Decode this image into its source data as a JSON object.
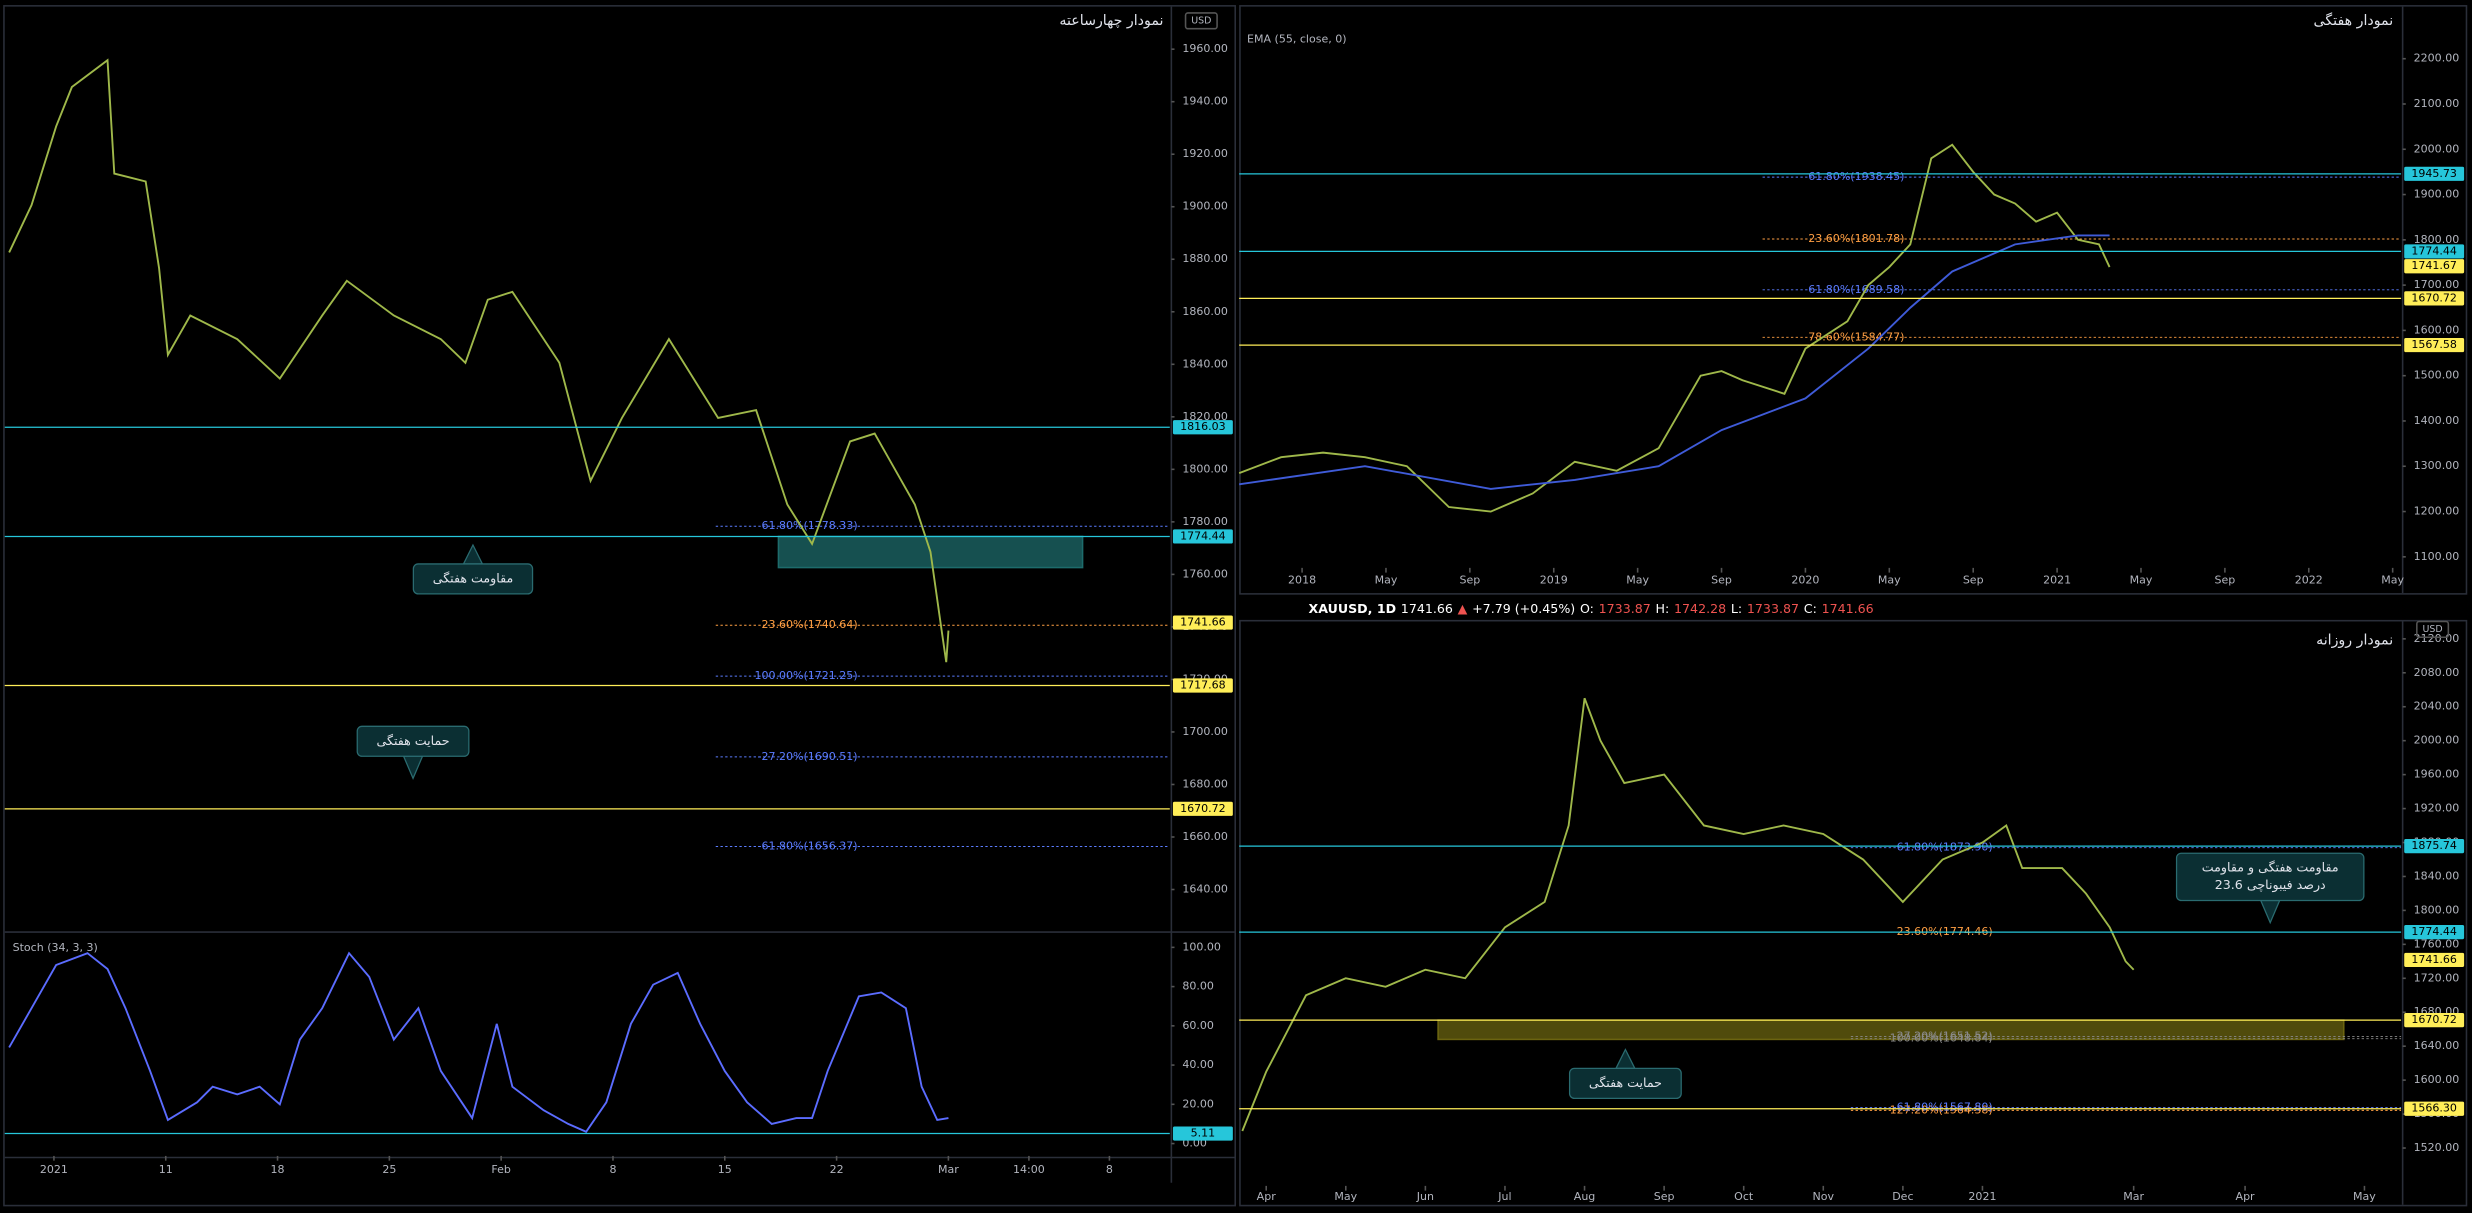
{
  "chart_data": [
    {
      "type": "line",
      "title": "نمودار چهارساعته",
      "currency": "USD",
      "xlim": [
        -2.2,
        49.9
      ],
      "ylim": [
        1624.4,
        1975.6
      ],
      "yticks": [
        {
          "value": 1640,
          "label": "1640.00"
        },
        {
          "value": 1660,
          "label": "1660.00"
        },
        {
          "value": 1680,
          "label": "1680.00"
        },
        {
          "value": 1700,
          "label": "1700.00"
        },
        {
          "value": 1720,
          "label": "1720.00"
        },
        {
          "value": 1740,
          "label": "1740.00"
        },
        {
          "value": 1760,
          "label": "1760.00"
        },
        {
          "value": 1780,
          "label": "1780.00"
        },
        {
          "value": 1800,
          "label": "1800.00"
        },
        {
          "value": 1820,
          "label": "1820.00"
        },
        {
          "value": 1840,
          "label": "1840.00"
        },
        {
          "value": 1860,
          "label": "1860.00"
        },
        {
          "value": 1880,
          "label": "1880.00"
        },
        {
          "value": 1900,
          "label": "1900.00"
        },
        {
          "value": 1920,
          "label": "1920.00"
        },
        {
          "value": 1940,
          "label": "1940.00"
        },
        {
          "value": 1960,
          "label": "1960.00"
        }
      ],
      "grid": false,
      "series": [
        {
          "color": "#9fb84a",
          "x": [
            -2.0,
            -1.0,
            0.1,
            0.8,
            2.4,
            2.7,
            4.1,
            4.7,
            5.1,
            6.1,
            8.2,
            10.1,
            12.0,
            13.1,
            15.2,
            17.3,
            18.4,
            19.4,
            20.5,
            22.6,
            24.0,
            25.4,
            27.5,
            29.7,
            31.4,
            32.8,
            33.9,
            35.6,
            36.7,
            38.5,
            39.2,
            39.7,
            39.9,
            40.0
          ],
          "values": [
            1882.6,
            1900.6,
            1930.6,
            1945.6,
            1955.8,
            1912.6,
            1909.6,
            1876.6,
            1843.6,
            1858.6,
            1849.6,
            1834.6,
            1858.6,
            1871.8,
            1858.6,
            1849.6,
            1840.6,
            1864.6,
            1867.6,
            1840.6,
            1795.6,
            1819.6,
            1849.6,
            1819.6,
            1822.6,
            1786.6,
            1771.6,
            1810.6,
            1813.6,
            1786.6,
            1768.6,
            1738.6,
            1726.6,
            1738.6
          ]
        }
      ],
      "zones": [
        {
          "xfrom": 32.4,
          "xto": 46.0,
          "from": 1774.44,
          "to": 1762.6,
          "color": "#1d6b6b"
        }
      ],
      "levels": [
        {
          "value": 1816.03,
          "color": "#26c6da"
        },
        {
          "value": 1774.44,
          "color": "#26c6da"
        },
        {
          "value": 1741.66,
          "color": "#ffee58",
          "line": false
        },
        {
          "value": 1717.68,
          "color": "#ffee58"
        },
        {
          "value": 1670.72,
          "color": "#ffee58"
        }
      ],
      "fibs": [
        {
          "label": "61.80%(1778.33)",
          "value": 1778.33,
          "color": "#5b7cff"
        },
        {
          "label": "23.60%(1740.64)",
          "value": 1740.64,
          "color": "#ff9f43"
        },
        {
          "label": "100.00%(1721.25)",
          "value": 1721.25,
          "color": "#5b7cff"
        },
        {
          "label": "-27.20%(1690.51)",
          "value": 1690.51,
          "color": "#5b7cff"
        },
        {
          "label": "-61.80%(1656.37)",
          "value": 1656.37,
          "color": "#5b7cff"
        }
      ],
      "annotations": [
        [
          "مقاومت هفتگی"
        ],
        [
          "حمایت هفتگی"
        ]
      ]
    },
    {
      "type": "line",
      "title": "Stoch (34, 3, 3)",
      "xlim": [
        -2.2,
        49.9
      ],
      "ylim": [
        -6.3,
        107
      ],
      "xticks": [
        {
          "value": 0,
          "label": "2021"
        },
        {
          "value": 5,
          "label": "11"
        },
        {
          "value": 10,
          "label": "18"
        },
        {
          "value": 15,
          "label": "25"
        },
        {
          "value": 20,
          "label": "Feb"
        },
        {
          "value": 25,
          "label": "8"
        },
        {
          "value": 30,
          "label": "15"
        },
        {
          "value": 35,
          "label": "22"
        },
        {
          "value": 40,
          "label": "Mar"
        },
        {
          "value": 43.6,
          "label": "14:00"
        },
        {
          "value": 47.2,
          "label": "8"
        }
      ],
      "yticks": [
        {
          "value": 0,
          "label": "0.00"
        },
        {
          "value": 20,
          "label": "20.00"
        },
        {
          "value": 40,
          "label": "40.00"
        },
        {
          "value": 60,
          "label": "60.00"
        },
        {
          "value": 80,
          "label": "80.00"
        },
        {
          "value": 100,
          "label": "100.00"
        }
      ],
      "grid": false,
      "series": [
        {
          "color": "#5b6cff",
          "x": [
            -2.0,
            -1.0,
            0.1,
            1.5,
            2.4,
            3.2,
            4.3,
            5.1,
            6.4,
            7.1,
            8.2,
            9.2,
            10.1,
            11.0,
            12.0,
            13.2,
            14.1,
            15.2,
            16.3,
            17.3,
            18.7,
            19.8,
            20.5,
            21.9,
            23.0,
            23.8,
            24.7,
            25.8,
            26.8,
            27.9,
            28.9,
            30.0,
            31.0,
            32.1,
            33.2,
            33.9,
            34.6,
            36.0,
            37.0,
            38.1,
            38.8,
            39.5,
            40.0
          ],
          "values": [
            49,
            69,
            91,
            97,
            89,
            69,
            37,
            12,
            21,
            29,
            25,
            29,
            20,
            53,
            69,
            97,
            85,
            53,
            69,
            37,
            13,
            61,
            29,
            17,
            10,
            6,
            21,
            61,
            81,
            87,
            61,
            37,
            21,
            10,
            13,
            13,
            37,
            75,
            77,
            69,
            29,
            12,
            13
          ]
        }
      ],
      "levels": [
        {
          "value": 5.11,
          "color": "#26c6da"
        }
      ]
    },
    {
      "type": "line",
      "title": "نمودار هفتگی",
      "xlim": [
        -3.0,
        52.4
      ],
      "ylim": [
        1075.6,
        2311.5
      ],
      "xticks": [
        {
          "value": 0,
          "label": "2018"
        },
        {
          "value": 4,
          "label": "May"
        },
        {
          "value": 8,
          "label": "Sep"
        },
        {
          "value": 12,
          "label": "2019"
        },
        {
          "value": 16,
          "label": "May"
        },
        {
          "value": 20,
          "label": "Sep"
        },
        {
          "value": 24,
          "label": "2020"
        },
        {
          "value": 28,
          "label": "May"
        },
        {
          "value": 32,
          "label": "Sep"
        },
        {
          "value": 36,
          "label": "2021"
        },
        {
          "value": 40,
          "label": "May"
        },
        {
          "value": 44,
          "label": "Sep"
        },
        {
          "value": 48,
          "label": "2022"
        },
        {
          "value": 52,
          "label": "May"
        }
      ],
      "yticks": [
        {
          "value": 1100,
          "label": "1100.00"
        },
        {
          "value": 1200,
          "label": "1200.00"
        },
        {
          "value": 1300,
          "label": "1300.00"
        },
        {
          "value": 1400,
          "label": "1400.00"
        },
        {
          "value": 1500,
          "label": "1500.00"
        },
        {
          "value": 1600,
          "label": "1600.00"
        },
        {
          "value": 1700,
          "label": "1700.00"
        },
        {
          "value": 1800,
          "label": "1800.00"
        },
        {
          "value": 1900,
          "label": "1900.00"
        },
        {
          "value": 2000,
          "label": "2000.00"
        },
        {
          "value": 2100,
          "label": "2100.00"
        },
        {
          "value": 2200,
          "label": "2200.00"
        }
      ],
      "grid": false,
      "series": [
        {
          "color": "#9fb84a",
          "x": [
            -3,
            -1,
            1,
            3,
            5,
            7,
            9,
            11,
            13,
            15,
            17,
            18,
            19,
            20,
            21,
            23,
            24,
            25,
            26,
            27,
            28,
            29,
            30,
            31,
            32,
            33,
            34,
            35,
            36,
            37,
            38,
            38.5
          ],
          "values": [
            1285,
            1320,
            1330,
            1320,
            1300,
            1210,
            1200,
            1240,
            1310,
            1290,
            1340,
            1420,
            1500,
            1510,
            1490,
            1460,
            1560,
            1590,
            1620,
            1700,
            1740,
            1790,
            1980,
            2010,
            1950,
            1900,
            1880,
            1840,
            1860,
            1800,
            1790,
            1740
          ]
        },
        {
          "name": "EMA (55, close, 0)",
          "color": "#3f5bd8",
          "x": [
            -3,
            3,
            9,
            13,
            17,
            20,
            24,
            27,
            29,
            31,
            34,
            37,
            38.5
          ],
          "values": [
            1260,
            1300,
            1250,
            1270,
            1300,
            1380,
            1450,
            1560,
            1650,
            1730,
            1790,
            1810,
            1810
          ]
        }
      ],
      "levels": [
        {
          "value": 1945.73,
          "color": "#26c6da"
        },
        {
          "value": 1774.44,
          "color": "#26c6da"
        },
        {
          "value": 1741.67,
          "color": "#ffee58",
          "line": false
        },
        {
          "value": 1670.72,
          "color": "#ffee58"
        },
        {
          "value": 1567.58,
          "color": "#ffee58"
        }
      ],
      "fibs": [
        {
          "label": "61.80%(1938.45)",
          "value": 1938.45,
          "color": "#5b7cff"
        },
        {
          "label": "23.60%(1801.78)",
          "value": 1801.78,
          "color": "#ff9f43"
        },
        {
          "label": "61.80%(1689.58)",
          "value": 1689.58,
          "color": "#5b7cff"
        },
        {
          "label": "78.60%(1584.77)",
          "value": 1584.77,
          "color": "#ff9f43"
        }
      ]
    },
    {
      "type": "line",
      "title": "نمودار روزانه",
      "currency": "USD",
      "header": [
        {
          "text": "XAUUSD, 1D",
          "color": "#ffffff"
        },
        {
          "text": "1741.66",
          "color": "#ffffff"
        },
        {
          "text": "▲",
          "color": "#ef5350"
        },
        {
          "text": "+7.79 (+0.45%)",
          "color": "#ffffff"
        },
        {
          "text": "O:",
          "color": "#ffffff"
        },
        {
          "text": "1733.87",
          "color": "#ef5350"
        },
        {
          "text": "H:",
          "color": "#ffffff"
        },
        {
          "text": "1742.28",
          "color": "#ef5350"
        },
        {
          "text": "L:",
          "color": "#ffffff"
        },
        {
          "text": "1733.87",
          "color": "#ef5350"
        },
        {
          "text": "C:",
          "color": "#ffffff"
        },
        {
          "text": "1741.66",
          "color": "#ef5350"
        }
      ],
      "xlim": [
        -0.34,
        14.26
      ],
      "ylim": [
        1475.4,
        2138.6
      ],
      "xticks": [
        {
          "value": 0,
          "label": "Apr"
        },
        {
          "value": 1,
          "label": "May"
        },
        {
          "value": 2,
          "label": "Jun"
        },
        {
          "value": 3,
          "label": "Jul"
        },
        {
          "value": 4,
          "label": "Aug"
        },
        {
          "value": 5,
          "label": "Sep"
        },
        {
          "value": 6,
          "label": "Oct"
        },
        {
          "value": 7,
          "label": "Nov"
        },
        {
          "value": 8,
          "label": "Dec"
        },
        {
          "value": 9,
          "label": "2021"
        },
        {
          "value": 10.9,
          "label": "Mar"
        },
        {
          "value": 12.3,
          "label": "Apr"
        },
        {
          "value": 13.8,
          "label": "May"
        }
      ],
      "yticks": [
        {
          "value": 1520,
          "label": "1520.00"
        },
        {
          "value": 1560,
          "label": "1560.00"
        },
        {
          "value": 1600,
          "label": "1600.00"
        },
        {
          "value": 1640,
          "label": "1640.00"
        },
        {
          "value": 1680,
          "label": "1680.00"
        },
        {
          "value": 1720,
          "label": "1720.00"
        },
        {
          "value": 1760,
          "label": "1760.00"
        },
        {
          "value": 1800,
          "label": "1800.00"
        },
        {
          "value": 1840,
          "label": "1840.00"
        },
        {
          "value": 1880,
          "label": "1880.00"
        },
        {
          "value": 1920,
          "label": "1920.00"
        },
        {
          "value": 1960,
          "label": "1960.00"
        },
        {
          "value": 2000,
          "label": "2000.00"
        },
        {
          "value": 2040,
          "label": "2040.00"
        },
        {
          "value": 2080,
          "label": "2080.00"
        },
        {
          "value": 2120,
          "label": "2120.00"
        }
      ],
      "grid": false,
      "series": [
        {
          "color": "#9fb84a",
          "x": [
            -0.3,
            0,
            0.5,
            1,
            1.5,
            2,
            2.5,
            3,
            3.5,
            3.8,
            4.0,
            4.2,
            4.5,
            5,
            5.5,
            6,
            6.5,
            7,
            7.5,
            8,
            8.5,
            9,
            9.3,
            9.5,
            10,
            10.3,
            10.6,
            10.8,
            10.9
          ],
          "values": [
            1540,
            1610,
            1700,
            1720,
            1710,
            1730,
            1720,
            1780,
            1810,
            1900,
            2050,
            2000,
            1950,
            1960,
            1900,
            1890,
            1900,
            1890,
            1860,
            1810,
            1860,
            1880,
            1900,
            1850,
            1850,
            1820,
            1780,
            1740,
            1730
          ]
        }
      ],
      "zones": [
        {
          "xfrom": 2.16,
          "xto": 13.54,
          "from": 1670.72,
          "to": 1648,
          "color": "#6b6410"
        }
      ],
      "levels": [
        {
          "value": 1875.74,
          "color": "#26c6da"
        },
        {
          "value": 1774.44,
          "color": "#26c6da"
        },
        {
          "value": 1741.66,
          "color": "#ffee58",
          "line": false
        },
        {
          "value": 1670.72,
          "color": "#ffee58"
        },
        {
          "value": 1566.3,
          "label": "1566.30",
          "color": "#ffee58"
        }
      ],
      "fibs": [
        {
          "label": "61.80%(1873.90)",
          "value": 1873.9,
          "color": "#5b7cff"
        },
        {
          "label": "23.60%(1774.46)",
          "value": 1774.46,
          "color": "#ff9f43"
        },
        {
          "label": "100.00%(1648.84)",
          "value": 1648.84,
          "color": "#8a8a8a"
        },
        {
          "label": "-27.20%(1651.52)",
          "value": 1651.52,
          "color": "#8a8a8a"
        },
        {
          "label": "127.20%(1564.38)",
          "value": 1564.38,
          "color": "#ff9f43"
        },
        {
          "label": "-61.80%(1567.80)",
          "value": 1567.8,
          "color": "#5b7cff"
        }
      ],
      "annotations": [
        [
          "حمایت هفتگی"
        ],
        [
          "مقاومت هفتگی و مقاومت",
          "23.6 درصد فیبوناچی"
        ]
      ]
    }
  ]
}
